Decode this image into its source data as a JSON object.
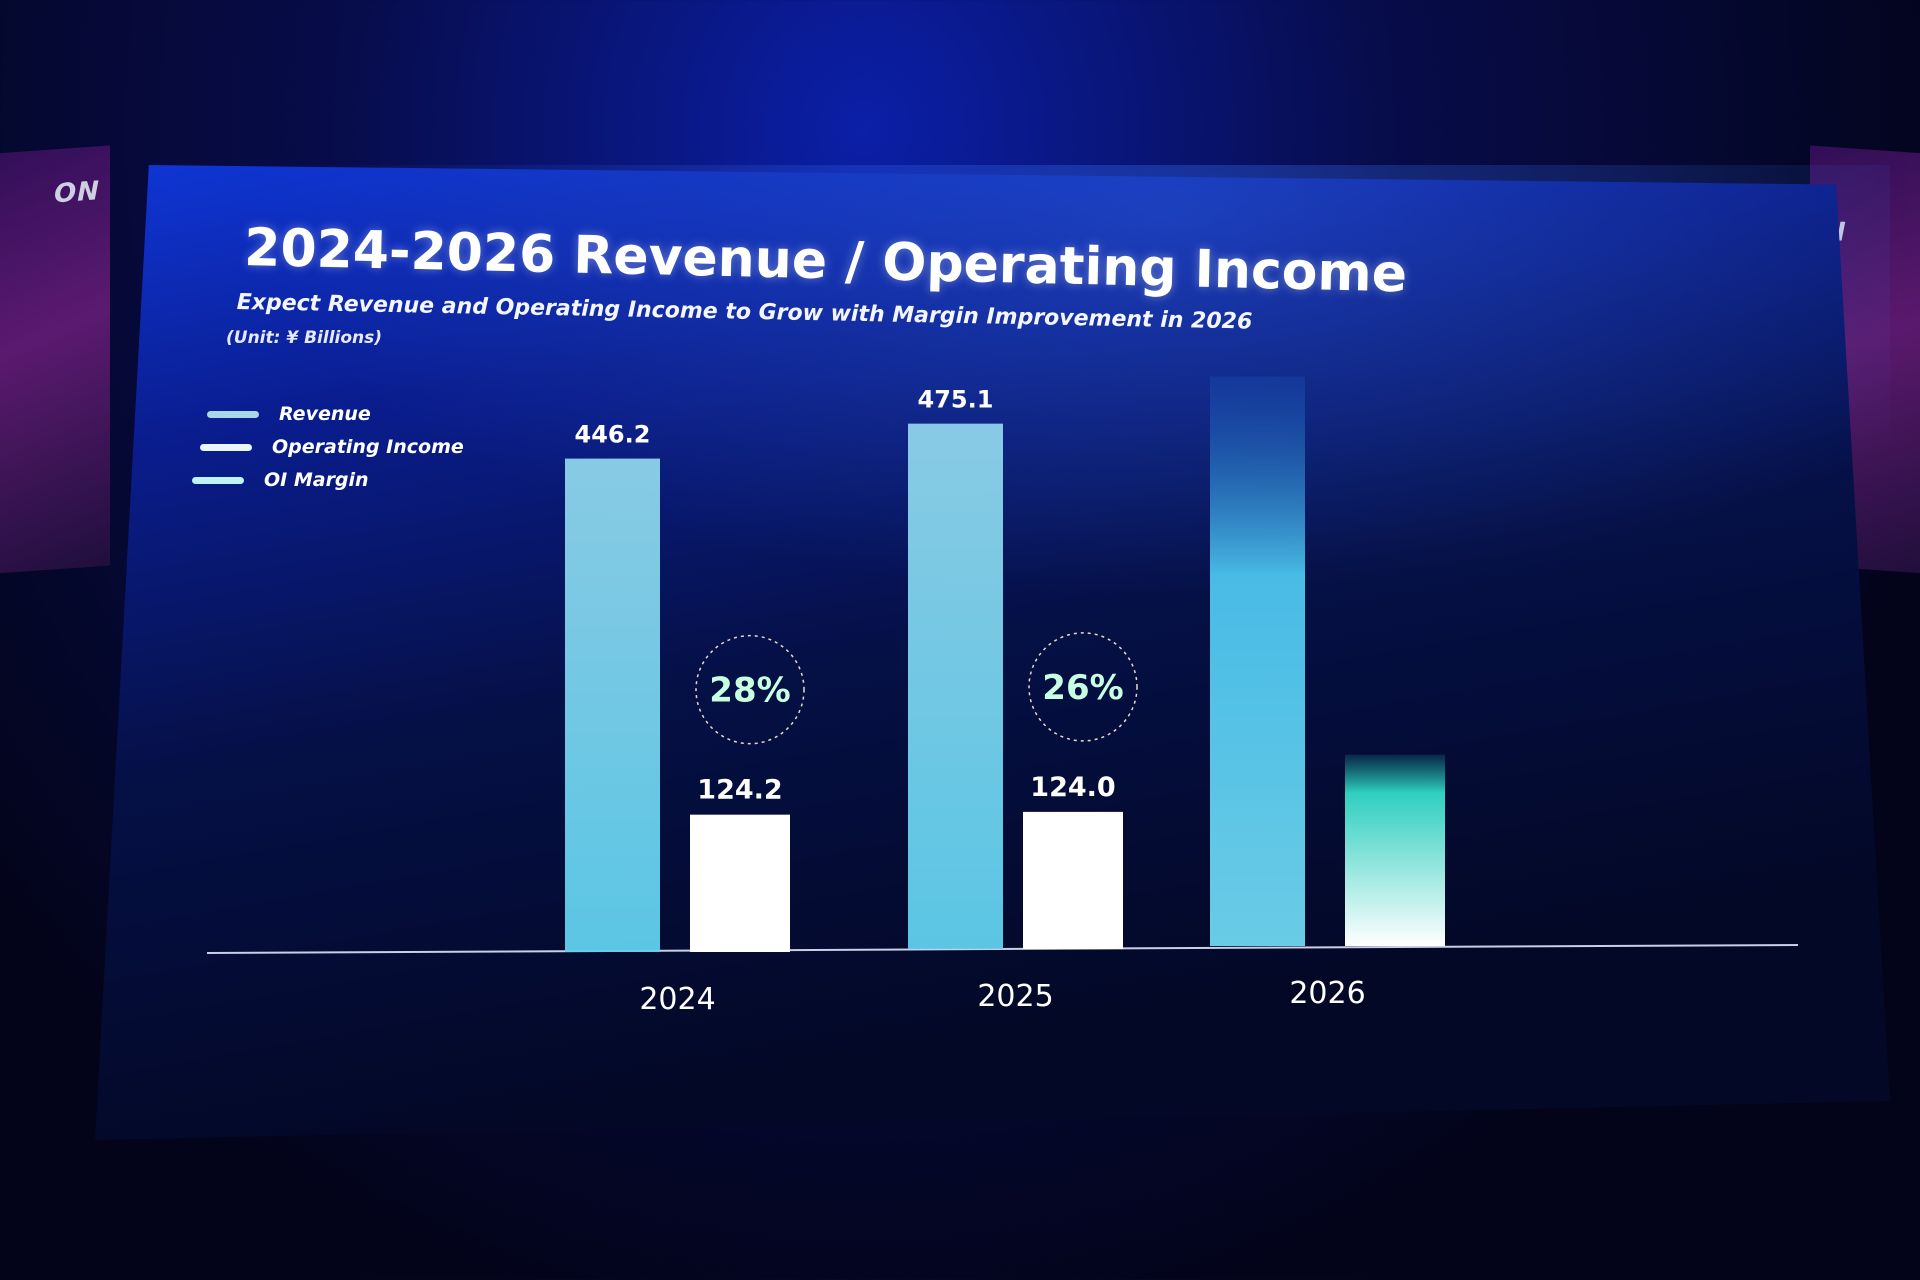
{
  "slide": {
    "title": "2024-2026 Revenue / Operating Income",
    "subtitle": "Expect Revenue and Operating Income to Grow with Margin Improvement in 2026",
    "unit": "(Unit: ¥ Billions)",
    "banner_left": "ON",
    "banner_right": "N"
  },
  "legend": [
    {
      "label": "Revenue",
      "color": "#a9d7e8"
    },
    {
      "label": "Operating Income",
      "color": "#e8f6ff"
    },
    {
      "label": "OI Margin",
      "color": "#bdf3f0"
    }
  ],
  "chart_data": {
    "type": "bar",
    "title": "2024-2026 Revenue / Operating Income",
    "unit": "¥ Billions",
    "categories": [
      "2024",
      "2025",
      "2026"
    ],
    "series": [
      {
        "name": "Revenue",
        "values": [
          446.2,
          475.1,
          515.0
        ],
        "labels": [
          "446.2",
          "475.1",
          ""
        ]
      },
      {
        "name": "Operating Income",
        "values": [
          124.2,
          124.0,
          173.0
        ],
        "labels": [
          "124.2",
          "124.0",
          ""
        ]
      }
    ],
    "oi_margin": {
      "values": [
        28,
        26,
        null
      ],
      "labels": [
        "28%",
        "26%",
        ""
      ]
    },
    "ylim": [
      0,
      520
    ],
    "colors": {
      "revenue": "#8fd3ea",
      "operating_income": "#ffffff",
      "margin": "#c8ffe0"
    }
  }
}
